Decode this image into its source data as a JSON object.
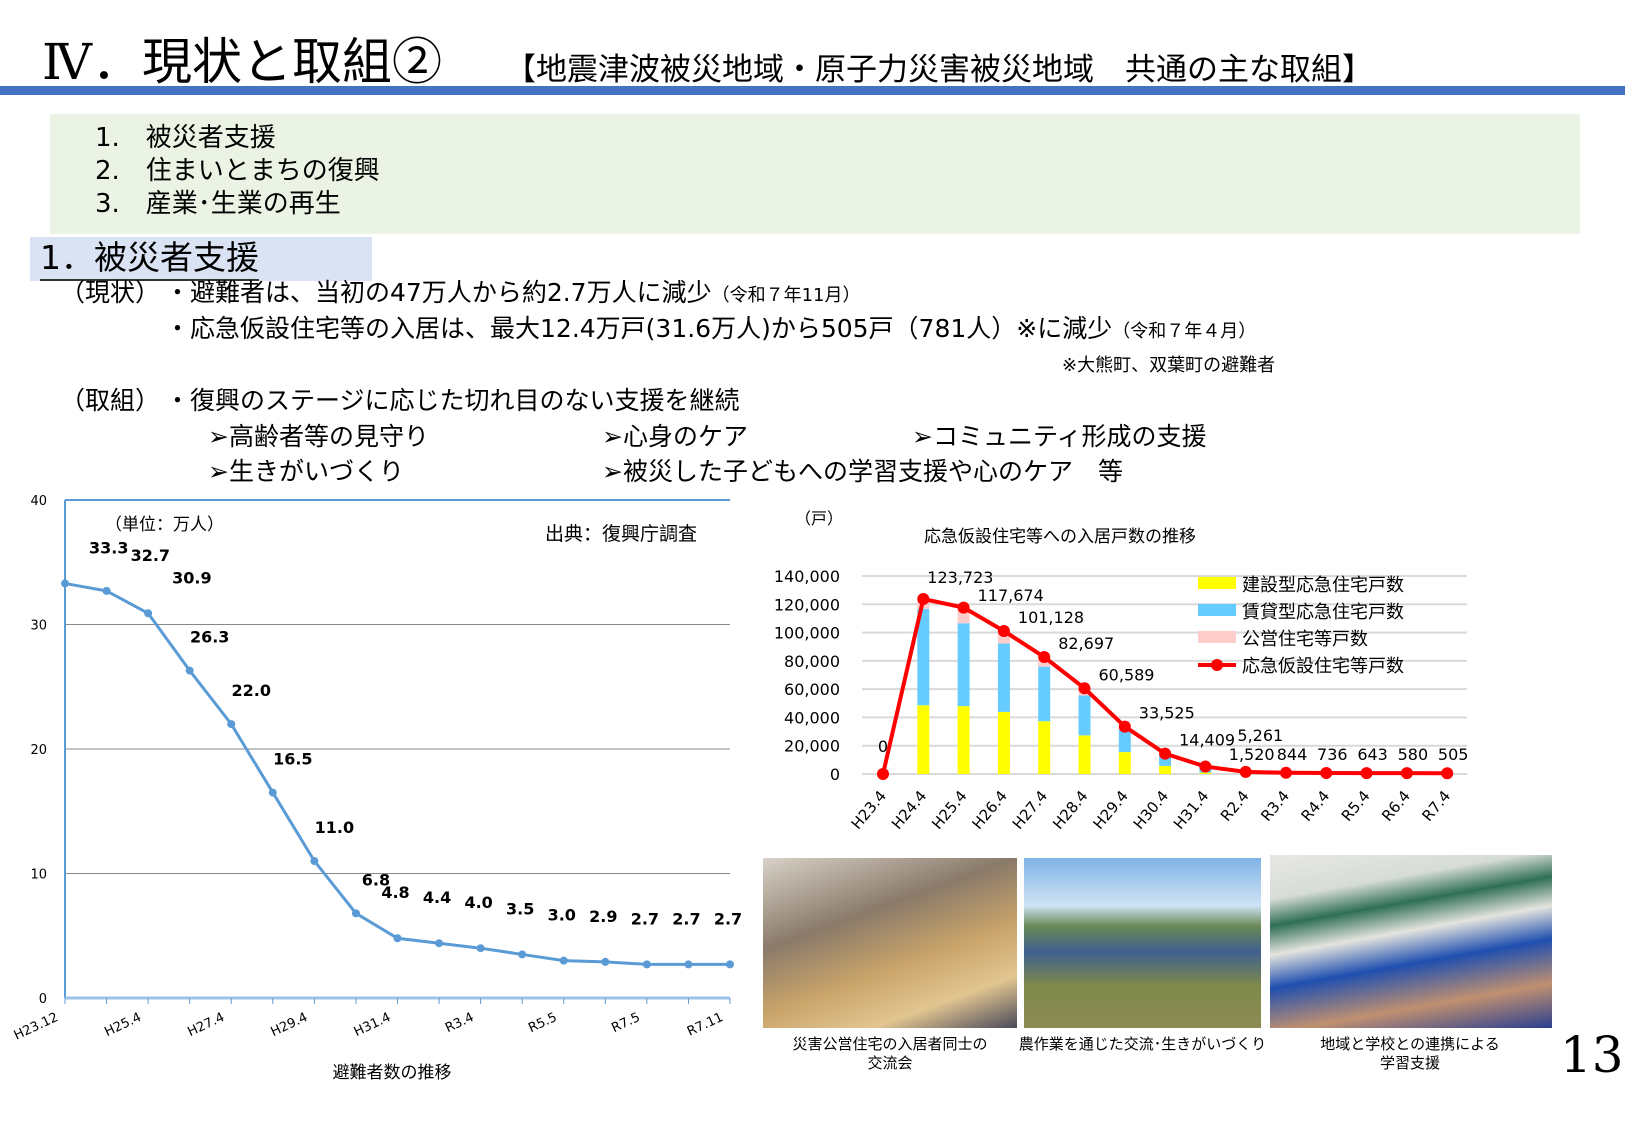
{
  "header": {
    "title": "Ⅳ．現状と取組②",
    "subtitle": "【地震津波被災地域・原子力災害被災地域　共通の主な取組】"
  },
  "agenda": [
    "1.　被災者支援",
    "2.　住まいとまちの復興",
    "3.　産業･生業の再生"
  ],
  "section": {
    "title": "1．被災者支援"
  },
  "status": {
    "label": "（現状）",
    "line1": "・避難者は、当初の47万人から約2.7万人に減少",
    "line1_note": "（令和７年11月）",
    "line2": "・応急仮設住宅等の入居は、最大12.4万戸(31.6万人)から505戸（781人）※に減少",
    "line2_note": "（令和７年４月）",
    "footnote": "※大熊町、双葉町の避難者"
  },
  "efforts": {
    "label": "（取組）",
    "line1": "・復興のステージに応じた切れ目のない支援を継続",
    "items": [
      "➢高齢者等の見守り",
      "➢心身のケア",
      "➢コミュニティ形成の支援",
      "➢生きがいづくり",
      "➢被災した子どもへの学習支援や心のケア　等"
    ]
  },
  "chart_data": [
    {
      "type": "line",
      "title": "避難者数の推移",
      "unit_label": "（単位：万人）",
      "source": "出典：復興庁調査",
      "categories": [
        "H23.12",
        "",
        "H25.4",
        "",
        "H27.4",
        "",
        "H29.4",
        "",
        "H31.4",
        "",
        "R3.4",
        "",
        "R5.5",
        "",
        "R7.5",
        "",
        "R7.11"
      ],
      "values": [
        33.3,
        32.7,
        30.9,
        26.3,
        22.0,
        16.5,
        11.0,
        6.8,
        4.8,
        4.4,
        4.0,
        3.5,
        3.0,
        2.9,
        2.7,
        2.7,
        2.7
      ],
      "labels": [
        "33.3",
        "32.7",
        "30.9",
        "26.3",
        "22.0",
        "16.5",
        "11.0",
        "6.8",
        "4.8",
        "4.4",
        "4.0",
        "3.5",
        "3.0",
        "2.9",
        "2.7",
        "2.7",
        "2.7"
      ],
      "yticks": [
        "0",
        "10",
        "20",
        "30",
        "40"
      ],
      "ylim": [
        0,
        40
      ],
      "grid": true,
      "color": "#5b9bd5"
    },
    {
      "type": "bar+line",
      "title": "応急仮設住宅等への入居戸数の推移",
      "ylabel": "（戸）",
      "legend": "top-right",
      "grid": true,
      "categories": [
        "H23.4",
        "H24.4",
        "H25.4",
        "H26.4",
        "H27.4",
        "H28.4",
        "H29.4",
        "H30.4",
        "H31.4",
        "R2.4",
        "R3.4",
        "R4.4",
        "R5.4",
        "R6.4",
        "R7.4"
      ],
      "yticks": [
        "0",
        "20,000",
        "40,000",
        "60,000",
        "80,000",
        "100,000",
        "120,000",
        "140,000"
      ],
      "ylim": [
        0,
        140000
      ],
      "series": [
        {
          "name": "建設型応急住宅戸数",
          "type": "bar",
          "color": "#ffff00",
          "values": [
            0,
            48600,
            48000,
            43900,
            37300,
            27300,
            15500,
            5700,
            1000,
            200,
            100,
            100,
            100,
            100,
            100
          ]
        },
        {
          "name": "賃貸型応急住宅戸数",
          "type": "bar",
          "color": "#66ccff",
          "values": [
            0,
            68200,
            58600,
            48400,
            38600,
            28200,
            16000,
            7500,
            3500,
            900,
            450,
            400,
            350,
            300,
            250
          ]
        },
        {
          "name": "公営住宅等戸数",
          "type": "bar",
          "color": "#ffcccc",
          "values": [
            0,
            6900,
            11100,
            8800,
            6800,
            5100,
            2000,
            1200,
            700,
            420,
            294,
            236,
            193,
            180,
            155
          ]
        },
        {
          "name": "応急仮設住宅等戸数",
          "type": "line",
          "color": "#ff0000",
          "values": [
            0,
            123723,
            117674,
            101128,
            82697,
            60589,
            33525,
            14409,
            5261,
            1520,
            844,
            736,
            643,
            580,
            505
          ],
          "labels": [
            "0",
            "123,723",
            "117,674",
            "101,128",
            "82,697",
            "60,589",
            "33,525",
            "14,409",
            "5,261",
            "1,520",
            "844",
            "736",
            "643",
            "580",
            "505"
          ]
        }
      ]
    }
  ],
  "photos": [
    {
      "caption": "災害公営住宅の入居者同士の\n交流会"
    },
    {
      "caption": "農作業を通じた交流･生きがいづくり"
    },
    {
      "caption": "地域と学校との連携による\n学習支援"
    }
  ],
  "page_number": "13"
}
